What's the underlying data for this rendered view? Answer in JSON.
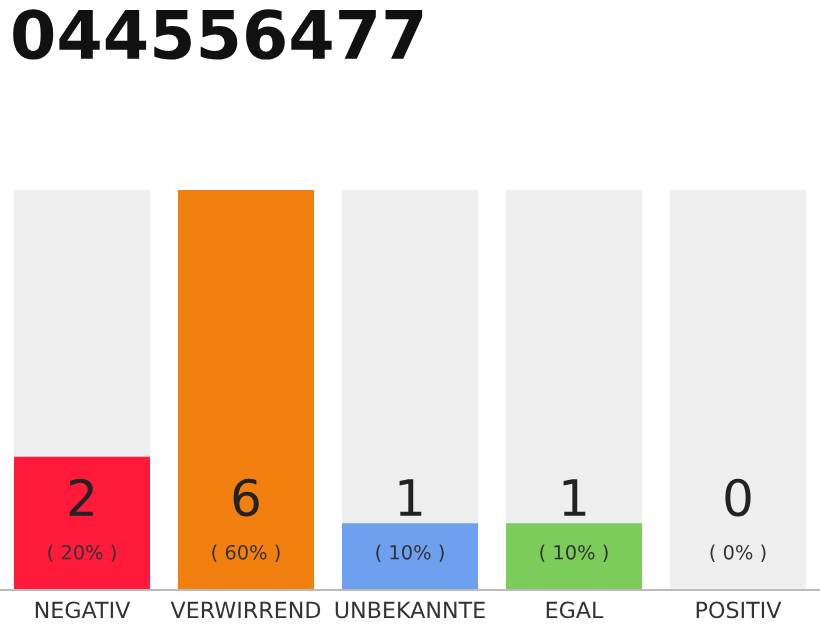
{
  "chart_data": {
    "type": "bar",
    "title": "044556477",
    "categories": [
      "NEGATIV",
      "VERWIRREND",
      "UNBEKANNTE",
      "EGAL",
      "POSITIV"
    ],
    "values": [
      2,
      6,
      1,
      1,
      0
    ],
    "colors": [
      "#ff1a3c",
      "#f28010",
      "#6ea0f0",
      "#7ccc5c",
      "#cccccc"
    ],
    "value_labels": [
      "2\n( 20% )",
      "6\n( 60% )",
      "1\n( 10% )",
      "1\n( 10% )",
      "0\n( 0% )"
    ],
    "ylim": [
      0,
      6
    ],
    "grid": "x",
    "legend": false
  }
}
